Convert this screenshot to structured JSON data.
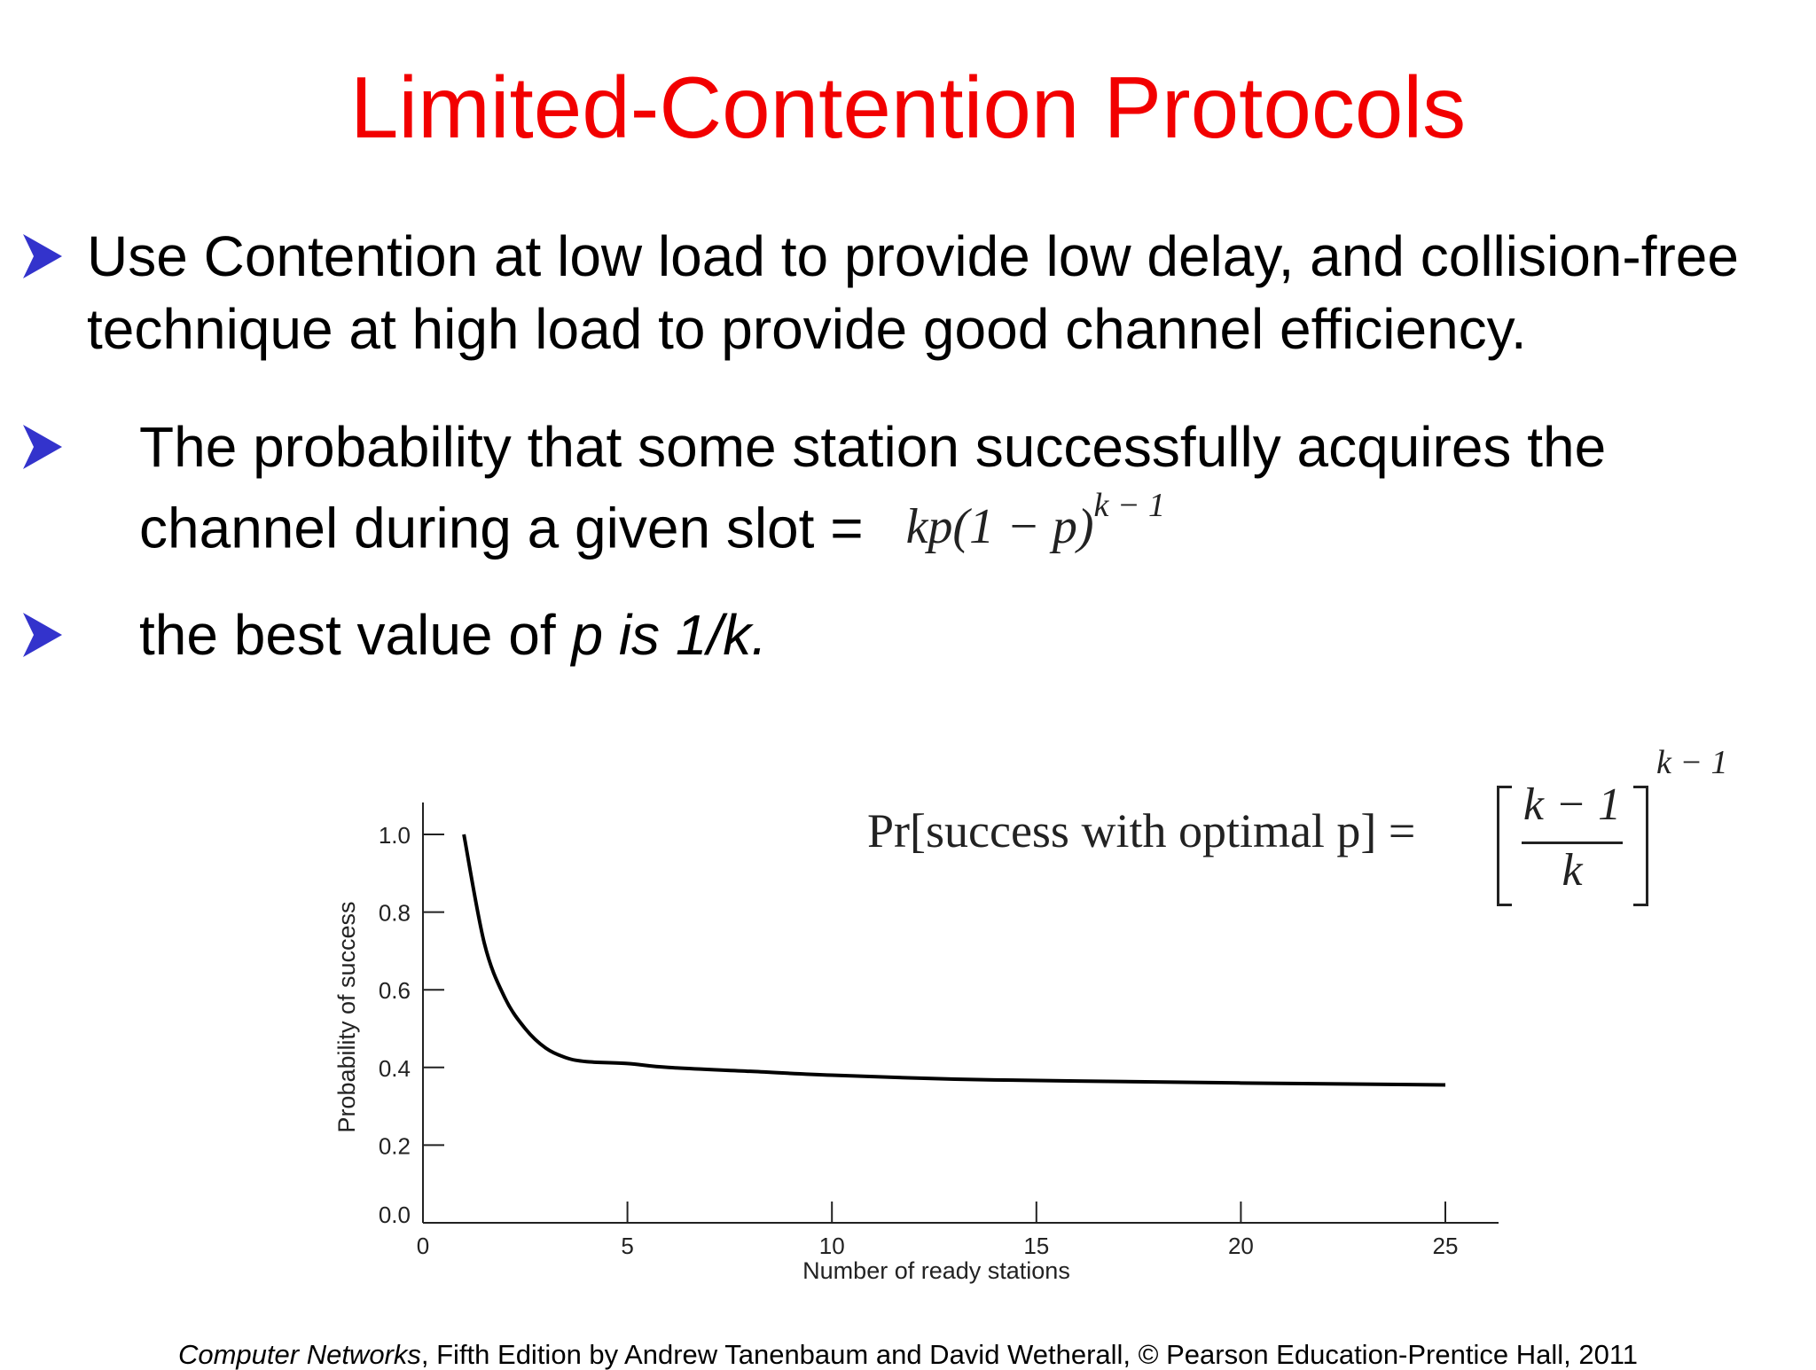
{
  "title": "Limited-Contention Protocols",
  "bullets": [
    {
      "text": "Use Contention at low load to provide low delay, and collision-free technique at high load to provide good channel efficiency."
    },
    {
      "text": "The probability that some station successfully acquires the channel during a given slot =",
      "formula": "kp(1 − p)",
      "formula_exp": "k − 1"
    },
    {
      "text_pre": "the best value of ",
      "text_italic": "p is 1/k."
    }
  ],
  "bullet_icon": "arrowhead-bullet-icon",
  "colors": {
    "title": "#f20000",
    "bullet": "#3333cc",
    "curve": "#000000"
  },
  "optimal_formula": {
    "lhs": "Pr[success with optimal p] =",
    "numerator": "k − 1",
    "denominator": "k",
    "exponent": "k − 1"
  },
  "chart_data": {
    "type": "line",
    "xlabel": "Number of ready stations",
    "ylabel": "Probability of success",
    "xlim": [
      0,
      25
    ],
    "ylim": [
      0.0,
      1.0
    ],
    "xticks": [
      "0",
      "5",
      "10",
      "15",
      "20",
      "25"
    ],
    "yticks": [
      "0.0",
      "0.2",
      "0.4",
      "0.6",
      "0.8",
      "1.0"
    ],
    "grid": false,
    "series": [
      {
        "x": [
          1,
          1.5,
          2,
          2.5,
          3,
          3.5,
          4,
          5,
          6,
          8,
          10,
          13,
          16,
          20,
          25
        ],
        "values": [
          1.0,
          0.72,
          0.58,
          0.5,
          0.45,
          0.425,
          0.415,
          0.41,
          0.4,
          0.39,
          0.38,
          0.37,
          0.365,
          0.36,
          0.355
        ]
      }
    ]
  },
  "footer": {
    "italic": "Computer Networks",
    "rest": ", Fifth Edition by Andrew Tanenbaum and David Wetherall, © Pearson Education-Prentice Hall, 2011"
  }
}
